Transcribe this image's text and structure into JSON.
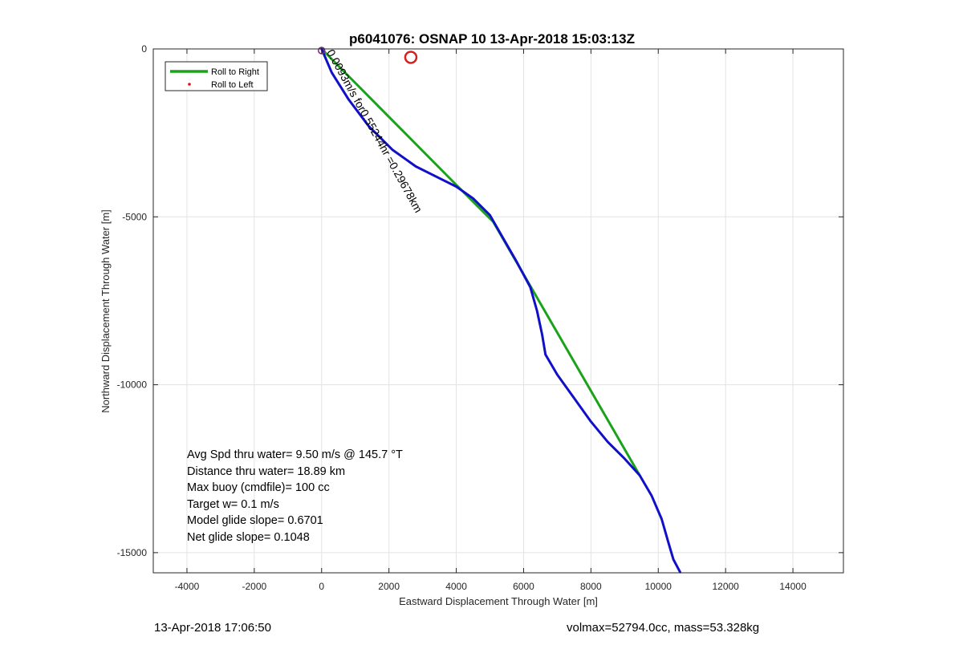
{
  "chart_data": {
    "type": "line",
    "title": "p6041076: OSNAP 10 13-Apr-2018 15:03:13Z",
    "xlabel": "Eastward Displacement Through Water [m]",
    "ylabel": "Northward Displacement Through Water [m]",
    "xlim": [
      -5000,
      15500
    ],
    "ylim": [
      -15600,
      0
    ],
    "xticks": [
      -4000,
      -2000,
      0,
      2000,
      4000,
      6000,
      8000,
      10000,
      12000,
      14000
    ],
    "xtick_labels": [
      "-4000",
      "-2000",
      "0",
      "2000",
      "4000",
      "6000",
      "8000",
      "10000",
      "12000",
      "14000"
    ],
    "yticks": [
      -15000,
      -10000,
      -5000,
      0
    ],
    "ytick_labels": [
      "-15000",
      "-10000",
      "-5000",
      "0"
    ],
    "grid": true,
    "legend": {
      "placement": "top-left",
      "entries": [
        {
          "label": "Roll to Right",
          "color": "#1aa31a",
          "style": "line"
        },
        {
          "label": "Roll to Left",
          "color": "#e01010",
          "style": "dot"
        }
      ]
    },
    "series": [
      {
        "color": "#1aa31a",
        "x": [
          0,
          4000,
          5100,
          9450
        ],
        "y": [
          0,
          -4050,
          -5150,
          -12700
        ]
      },
      {
        "color": "#1010c8",
        "x": [
          0,
          300,
          800,
          1400,
          2100,
          2800,
          3500,
          4000,
          4500,
          5000,
          5400,
          5800,
          6200,
          6400,
          6550,
          6650,
          7000,
          7500,
          8000,
          8500,
          9000,
          9450,
          9800,
          10100,
          10300,
          10450,
          10650
        ],
        "y": [
          0,
          -700,
          -1500,
          -2300,
          -3000,
          -3500,
          -3850,
          -4100,
          -4450,
          -4950,
          -5650,
          -6350,
          -7100,
          -7800,
          -8500,
          -9100,
          -9700,
          -10400,
          -11100,
          -11700,
          -12200,
          -12700,
          -13300,
          -14000,
          -14700,
          -15200,
          -15580
        ]
      }
    ],
    "markers": [
      {
        "type": "circle",
        "x": 2650,
        "y": -250,
        "color": "#d62020"
      }
    ],
    "annotation": {
      "text": "0.0093m/s for0.55244hr =0.29678km",
      "x": 0,
      "y": 0,
      "rotation_deg": -61
    },
    "stats": [
      "Avg Spd thru water=  9.50 m/s @ 145.7 °T",
      "Distance thru water= 18.89 km",
      "Max buoy (cmdfile)= 100 cc",
      "Target w= 0.1 m/s",
      "Model glide slope= 0.6701",
      "Net glide slope= 0.1048"
    ]
  },
  "footer": {
    "timestamp": "13-Apr-2018 17:06:50",
    "vol_mass": "volmax=52794.0cc, mass=53.328kg"
  }
}
